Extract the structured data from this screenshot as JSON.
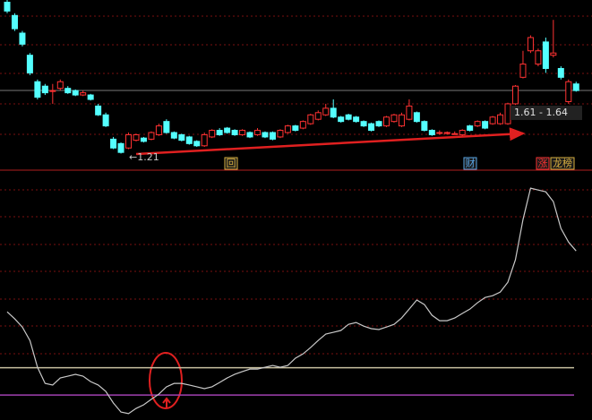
{
  "chart_data": [
    {
      "type": "candlestick",
      "ylim": [
        1.1,
        2.6
      ],
      "up_color": "#ff3232",
      "down_color": "#54ffff",
      "open": [
        2.58,
        2.46,
        2.3,
        2.1,
        1.86,
        1.82,
        1.78,
        1.8,
        1.8,
        1.78,
        1.74,
        1.74,
        1.64,
        1.56,
        1.34,
        1.3,
        1.26,
        1.33,
        1.35,
        1.34,
        1.38,
        1.5,
        1.4,
        1.38,
        1.36,
        1.32,
        1.28,
        1.36,
        1.42,
        1.44,
        1.42,
        1.38,
        1.4,
        1.38,
        1.4,
        1.4,
        1.36,
        1.4,
        1.46,
        1.44,
        1.48,
        1.52,
        1.56,
        1.62,
        1.54,
        1.56,
        1.54,
        1.5,
        1.48,
        1.5,
        1.46,
        1.5,
        1.46,
        1.52,
        1.58,
        1.5,
        1.42,
        1.4,
        1.4,
        1.39,
        1.38,
        1.46,
        1.46,
        1.5,
        1.48,
        1.48,
        1.48,
        1.66,
        1.9,
        2.14,
        2.02,
        2.22,
        2.1,
        1.98,
        1.68,
        1.84
      ],
      "close": [
        2.5,
        2.34,
        2.2,
        1.94,
        1.72,
        1.76,
        1.78,
        1.86,
        1.76,
        1.74,
        1.76,
        1.7,
        1.56,
        1.46,
        1.26,
        1.22,
        1.38,
        1.38,
        1.32,
        1.4,
        1.46,
        1.4,
        1.35,
        1.33,
        1.3,
        1.28,
        1.38,
        1.42,
        1.38,
        1.4,
        1.38,
        1.42,
        1.36,
        1.42,
        1.36,
        1.34,
        1.42,
        1.46,
        1.42,
        1.5,
        1.56,
        1.58,
        1.62,
        1.54,
        1.5,
        1.52,
        1.5,
        1.46,
        1.42,
        1.46,
        1.54,
        1.56,
        1.56,
        1.64,
        1.5,
        1.42,
        1.38,
        1.4,
        1.4,
        1.39,
        1.42,
        1.42,
        1.5,
        1.44,
        1.54,
        1.56,
        1.66,
        1.82,
        2.02,
        2.26,
        2.14,
        1.98,
        2.12,
        1.9,
        1.86,
        1.78
      ],
      "high": [
        2.6,
        2.48,
        2.32,
        2.12,
        1.88,
        1.84,
        1.84,
        1.88,
        1.82,
        1.79,
        1.78,
        1.75,
        1.66,
        1.58,
        1.36,
        1.31,
        1.4,
        1.39,
        1.36,
        1.41,
        1.48,
        1.52,
        1.41,
        1.39,
        1.37,
        1.33,
        1.4,
        1.43,
        1.44,
        1.45,
        1.43,
        1.43,
        1.41,
        1.44,
        1.41,
        1.41,
        1.43,
        1.47,
        1.47,
        1.51,
        1.57,
        1.6,
        1.66,
        1.7,
        1.55,
        1.57,
        1.55,
        1.51,
        1.49,
        1.51,
        1.55,
        1.57,
        1.58,
        1.7,
        1.59,
        1.51,
        1.43,
        1.42,
        1.41,
        1.41,
        1.43,
        1.47,
        1.51,
        1.51,
        1.55,
        1.58,
        1.67,
        1.83,
        2.14,
        2.28,
        2.16,
        2.26,
        2.42,
        2.0,
        1.88,
        1.86
      ],
      "low": [
        2.48,
        2.32,
        2.18,
        1.92,
        1.7,
        1.74,
        1.66,
        1.78,
        1.75,
        1.73,
        1.73,
        1.69,
        1.55,
        1.45,
        1.25,
        1.21,
        1.25,
        1.32,
        1.31,
        1.33,
        1.37,
        1.39,
        1.34,
        1.32,
        1.29,
        1.27,
        1.27,
        1.35,
        1.37,
        1.39,
        1.37,
        1.37,
        1.35,
        1.37,
        1.35,
        1.33,
        1.35,
        1.39,
        1.41,
        1.43,
        1.47,
        1.51,
        1.55,
        1.53,
        1.49,
        1.51,
        1.49,
        1.45,
        1.41,
        1.45,
        1.45,
        1.49,
        1.45,
        1.51,
        1.49,
        1.41,
        1.37,
        1.38,
        1.38,
        1.38,
        1.37,
        1.41,
        1.45,
        1.43,
        1.47,
        1.47,
        1.47,
        1.65,
        1.89,
        2.12,
        2.0,
        1.94,
        2.08,
        1.88,
        1.66,
        1.77
      ],
      "low_label": "←1.21",
      "range_label": "1.61 - 1.64",
      "markers": [
        {
          "label": "回",
          "color": "#d8b040"
        },
        {
          "label": "财",
          "color": "#5aa8e8"
        },
        {
          "label": "涨",
          "color": "#ff3232"
        },
        {
          "label": "龙榜",
          "color": "#d8b040"
        }
      ]
    },
    {
      "type": "line",
      "ylim": [
        -3,
        103
      ],
      "color": "#c8c8c8",
      "values": [
        44.6,
        41.5,
        37.9,
        32.0,
        20.2,
        13.1,
        12.4,
        15.5,
        16.3,
        17.1,
        16.3,
        13.9,
        12.4,
        9.6,
        4.5,
        0.5,
        -0.2,
        2.1,
        3.7,
        6.1,
        8.4,
        11.6,
        13.1,
        13.1,
        12.4,
        11.6,
        10.8,
        11.6,
        13.5,
        15.5,
        17.1,
        18.3,
        19.4,
        19.4,
        20.2,
        21.0,
        20.2,
        21.0,
        24.2,
        26.1,
        28.9,
        32.0,
        34.8,
        35.6,
        36.4,
        39.1,
        39.9,
        38.3,
        37.2,
        36.8,
        37.9,
        39.1,
        41.9,
        45.8,
        49.8,
        47.8,
        43.1,
        40.7,
        40.7,
        41.9,
        43.9,
        45.8,
        48.6,
        50.9,
        51.7,
        53.3,
        57.6,
        67.5,
        85.2,
        99.0,
        98.2,
        97.4,
        93.1,
        81.3,
        75.3,
        71.4
      ],
      "levels": [
        {
          "value": 20,
          "color": "#c8c0a0"
        },
        {
          "value": 8,
          "color": "#a040b0"
        }
      ]
    }
  ]
}
